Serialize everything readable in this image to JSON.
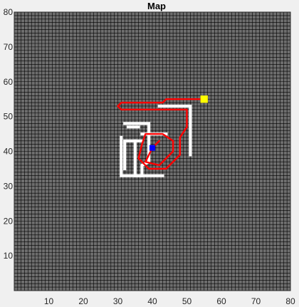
{
  "chart_data": {
    "type": "map",
    "title": "Map",
    "xlim": [
      0,
      80
    ],
    "ylim": [
      0,
      80
    ],
    "grid": true,
    "grid_cell": 1,
    "xticks": [
      10,
      20,
      30,
      40,
      50,
      60,
      70,
      80
    ],
    "yticks": [
      10,
      20,
      30,
      40,
      50,
      60,
      70,
      80
    ],
    "colors": {
      "free_space": "#6e6e6e",
      "grid_line": "#000000",
      "obstacle": "#ffffff",
      "path": "#ff0000",
      "goal": "#ffff00",
      "start": "#0000ff"
    },
    "obstacles": [
      [
        [
          42,
          53
        ],
        [
          51,
          53
        ],
        [
          51,
          39
        ]
      ],
      [
        [
          32,
          48
        ],
        [
          39,
          48
        ],
        [
          39,
          37
        ],
        [
          37,
          36
        ],
        [
          37,
          33
        ],
        [
          31,
          33
        ],
        [
          31,
          44
        ]
      ],
      [
        [
          33,
          47
        ],
        [
          36,
          47
        ]
      ],
      [
        [
          37,
          43
        ],
        [
          32,
          43
        ],
        [
          32,
          35
        ]
      ],
      [
        [
          43,
          33
        ],
        [
          35,
          33
        ],
        [
          35,
          43
        ]
      ],
      [
        [
          37,
          45
        ],
        [
          44,
          45
        ]
      ]
    ],
    "path": [
      [
        54,
        55
      ],
      [
        44,
        55
      ],
      [
        43,
        54
      ],
      [
        31,
        54
      ],
      [
        30,
        53
      ],
      [
        31,
        52
      ],
      [
        50,
        52
      ],
      [
        50,
        47
      ],
      [
        48,
        44
      ],
      [
        48,
        39
      ],
      [
        44,
        35
      ],
      [
        39,
        35
      ],
      [
        36,
        38
      ],
      [
        37,
        42
      ],
      [
        38,
        45
      ],
      [
        43,
        45
      ],
      [
        46,
        43
      ],
      [
        46,
        40
      ],
      [
        42,
        36
      ],
      [
        38,
        37
      ],
      [
        40,
        41
      ],
      [
        42,
        43
      ]
    ],
    "goal": [
      55,
      55
    ],
    "start": [
      40,
      41
    ]
  }
}
